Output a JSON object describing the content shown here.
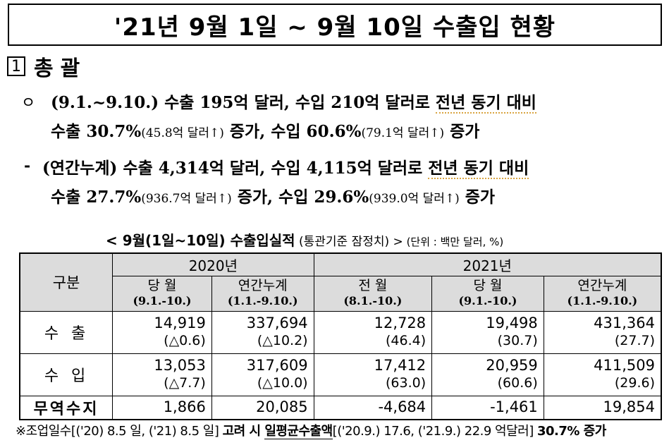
{
  "title": "'21년 9월 1일 ~ 9월 10일 수출입 현황",
  "section": {
    "number": "1",
    "title": "총괄"
  },
  "summary": {
    "bullet": "ㅇ",
    "p1_a": "(9.1.~9.10.) 수출 195억 달러, 수입 210억 달러로 ",
    "p1_ul": "전년 동기 대비",
    "p2_a": "수출 30.7%",
    "p2_small1": "(45.8억 달러↑)",
    "p2_b": " 증가, 수입 60.6%",
    "p2_small2": "(79.1억 달러↑)",
    "p2_c": " 증가",
    "dash": "-",
    "p3_a": "(연간누계) 수출 4,314억 달러, 수입 4,115억 달러로 ",
    "p3_ul": "전년 동기 대비",
    "p4_a": "수출 27.7%",
    "p4_small1": "(936.7억 달러↑)",
    "p4_b": " 증가, 수입 29.6%",
    "p4_small2": "(939.0억 달러↑)",
    "p4_c": " 증가"
  },
  "table": {
    "caption": "< 9월(1일~10일) 수출입실적",
    "caption_sub": " (통관기준 잠정치) >",
    "unit": " (단위 : 백만 달러, %)",
    "gubun": "구분",
    "years": [
      "2020년",
      "2021년"
    ],
    "columns": [
      {
        "name": "당 월",
        "period": "(9.1.-10.)"
      },
      {
        "name": "연간누계",
        "period": "(1.1.-9.10.)"
      },
      {
        "name": "전 월",
        "period": "(8.1.-10.)"
      },
      {
        "name": "당 월",
        "period": "(9.1.-10.)"
      },
      {
        "name": "연간누계",
        "period": "(1.1.-9.10.)"
      }
    ],
    "rows": [
      {
        "label": "수출",
        "values": [
          "14,919",
          "337,694",
          "12,728",
          "19,498",
          "431,364"
        ],
        "changes": [
          "(△0.6)",
          "(△10.2)",
          "(46.4)",
          "(30.7)",
          "(27.7)"
        ]
      },
      {
        "label": "수입",
        "values": [
          "13,053",
          "317,609",
          "17,412",
          "20,959",
          "411,509"
        ],
        "changes": [
          "(△7.7)",
          "(△10.0)",
          "(63.0)",
          "(60.6)",
          "(29.6)"
        ]
      },
      {
        "label": "무역수지",
        "values": [
          "1,866",
          "20,085",
          "-4,684",
          "-1,461",
          "19,854"
        ]
      }
    ]
  },
  "footnote": {
    "a": "※조업일수[('20) 8.5 일, ('21) 8.5 일] ",
    "b": "고려 시 ",
    "ul": "일평균수출액",
    "c": "[('20.9.) 17.6, ('21.9.) 22.9 억달러] ",
    "d": "30.7% 증가"
  }
}
